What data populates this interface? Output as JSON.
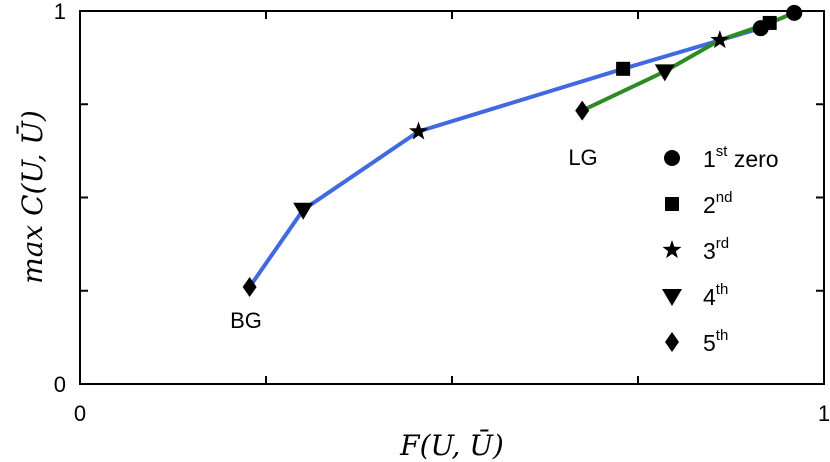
{
  "chart_data": {
    "type": "line",
    "xlabel": "F(U, Ū)",
    "ylabel": "max C(U, Ū)",
    "xlim": [
      0,
      1
    ],
    "ylim": [
      0,
      1
    ],
    "x_tick_labels": [
      "0",
      "1"
    ],
    "y_tick_labels": [
      "0",
      "1"
    ],
    "grid": false,
    "legend_placement": "right",
    "series": [
      {
        "color": "#4169e1",
        "points": [
          {
            "x": 0.915,
            "y": 0.954,
            "marker": "circle"
          },
          {
            "x": 0.73,
            "y": 0.845,
            "marker": "square"
          },
          {
            "x": 0.455,
            "y": 0.677,
            "marker": "star"
          },
          {
            "x": 0.3,
            "y": 0.467,
            "marker": "triangle-down"
          },
          {
            "x": 0.228,
            "y": 0.26,
            "marker": "diamond"
          }
        ],
        "end_label": "BG"
      },
      {
        "color": "#2e8b22",
        "points": [
          {
            "x": 0.96,
            "y": 0.995,
            "marker": "circle"
          },
          {
            "x": 0.927,
            "y": 0.968,
            "marker": "square"
          },
          {
            "x": 0.86,
            "y": 0.922,
            "marker": "star"
          },
          {
            "x": 0.786,
            "y": 0.838,
            "marker": "triangle-down"
          },
          {
            "x": 0.675,
            "y": 0.733,
            "marker": "diamond"
          }
        ],
        "end_label": "LG"
      }
    ],
    "legend": [
      {
        "marker": "circle",
        "base": "1",
        "sup": "st",
        "suffix": " zero"
      },
      {
        "marker": "square",
        "base": "2",
        "sup": "nd",
        "suffix": ""
      },
      {
        "marker": "star",
        "base": "3",
        "sup": "rd",
        "suffix": ""
      },
      {
        "marker": "triangle-down",
        "base": "4",
        "sup": "th",
        "suffix": ""
      },
      {
        "marker": "diamond",
        "base": "5",
        "sup": "th",
        "suffix": ""
      }
    ]
  }
}
